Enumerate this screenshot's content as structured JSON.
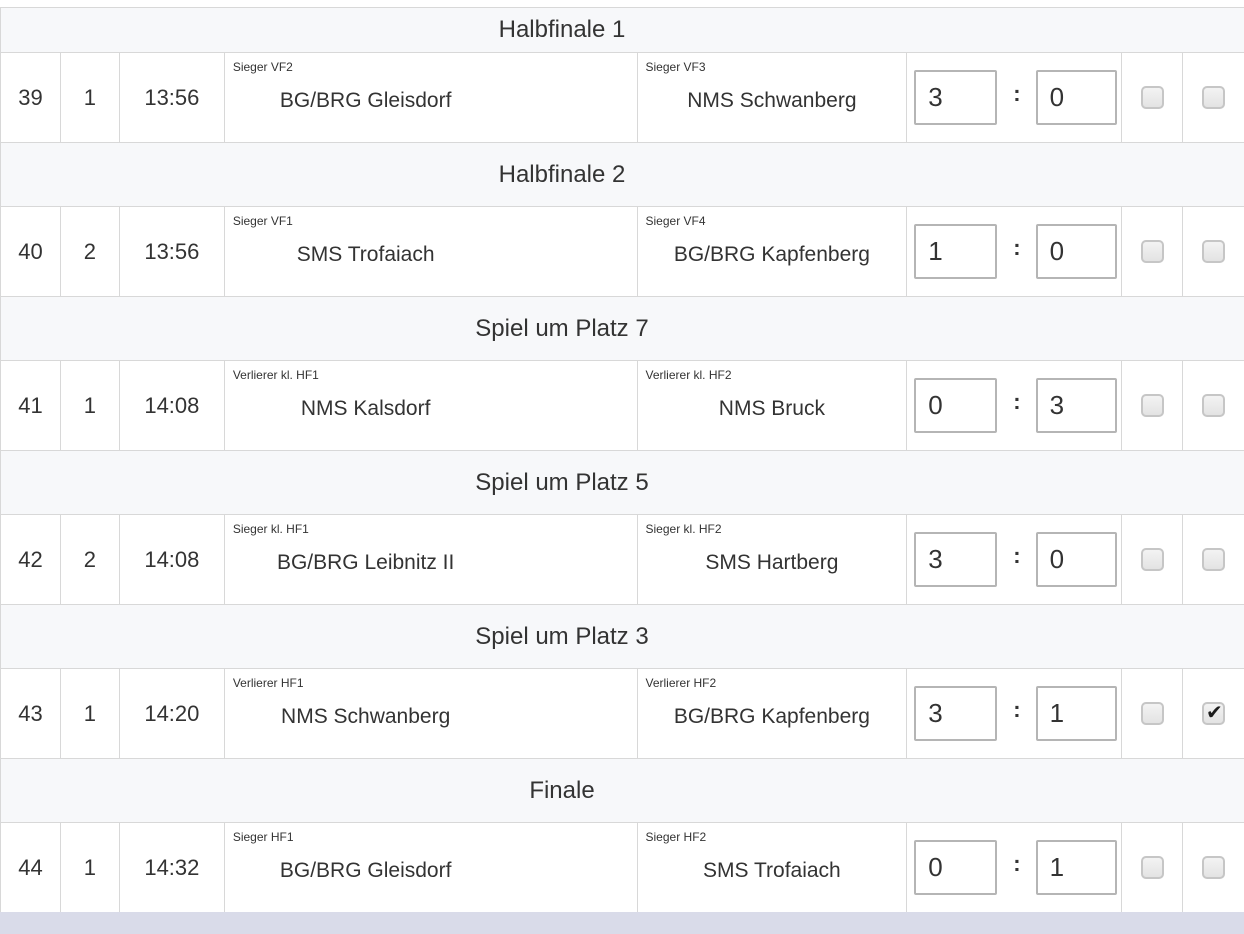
{
  "page": {
    "background_color": "#ffffff",
    "footer_bar_color": "#d9dbe9"
  },
  "table": {
    "header_bg_color": "#f7f8fa",
    "border_color": "#d8d8d8",
    "text_color": "#333333",
    "score_separator": ":",
    "checkmark_glyph": "✔",
    "sections": [
      {
        "title": "Halbfinale 1",
        "match": {
          "nr": "39",
          "court": "1",
          "time": "13:56",
          "home_label": "Sieger VF2",
          "home": "BG/BRG Gleisdorf",
          "away_label": "Sieger VF3",
          "away": "NMS Schwanberg",
          "score_home": "3",
          "score_away": "0",
          "check1": false,
          "check2": false
        }
      },
      {
        "title": "Halbfinale 2",
        "match": {
          "nr": "40",
          "court": "2",
          "time": "13:56",
          "home_label": "Sieger VF1",
          "home": "SMS Trofaiach",
          "away_label": "Sieger VF4",
          "away": "BG/BRG Kapfenberg",
          "score_home": "1",
          "score_away": "0",
          "check1": false,
          "check2": false
        }
      },
      {
        "title": "Spiel um Platz 7",
        "match": {
          "nr": "41",
          "court": "1",
          "time": "14:08",
          "home_label": "Verlierer kl. HF1",
          "home": "NMS Kalsdorf",
          "away_label": "Verlierer kl. HF2",
          "away": "NMS Bruck",
          "score_home": "0",
          "score_away": "3",
          "check1": false,
          "check2": false
        }
      },
      {
        "title": "Spiel um Platz 5",
        "match": {
          "nr": "42",
          "court": "2",
          "time": "14:08",
          "home_label": "Sieger kl. HF1",
          "home": "BG/BRG Leibnitz II",
          "away_label": "Sieger kl. HF2",
          "away": "SMS Hartberg",
          "score_home": "3",
          "score_away": "0",
          "check1": false,
          "check2": false
        }
      },
      {
        "title": "Spiel um Platz 3",
        "match": {
          "nr": "43",
          "court": "1",
          "time": "14:20",
          "home_label": "Verlierer HF1",
          "home": "NMS Schwanberg",
          "away_label": "Verlierer HF2",
          "away": "BG/BRG Kapfenberg",
          "score_home": "3",
          "score_away": "1",
          "check1": false,
          "check2": true
        }
      },
      {
        "title": "Finale",
        "match": {
          "nr": "44",
          "court": "1",
          "time": "14:32",
          "home_label": "Sieger HF1",
          "home": "BG/BRG Gleisdorf",
          "away_label": "Sieger HF2",
          "away": "SMS Trofaiach",
          "score_home": "0",
          "score_away": "1",
          "check1": false,
          "check2": false
        }
      }
    ]
  }
}
